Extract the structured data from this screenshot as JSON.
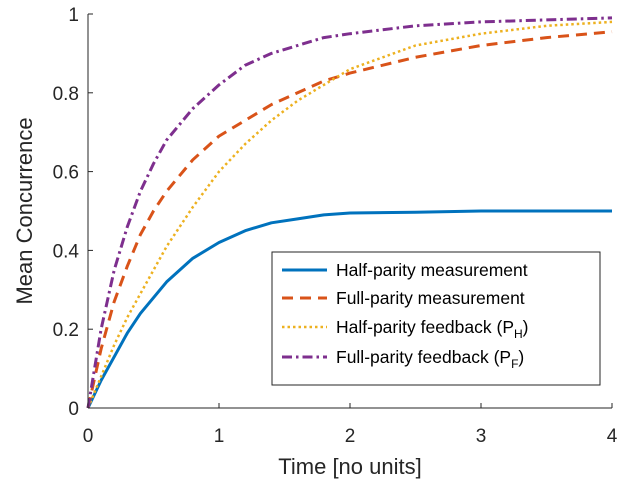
{
  "chart_data": {
    "type": "line",
    "xlabel": "Time [no units]",
    "ylabel": "Mean Concurrence",
    "xlim": [
      0,
      4
    ],
    "ylim": [
      0,
      1
    ],
    "xticks": [
      "0",
      "1",
      "2",
      "3",
      "4"
    ],
    "yticks": [
      "0",
      "0.2",
      "0.4",
      "0.6",
      "0.8",
      "1"
    ],
    "grid": false,
    "legend_position": "lower-right",
    "x": [
      0,
      0.1,
      0.2,
      0.3,
      0.4,
      0.5,
      0.6,
      0.8,
      1.0,
      1.2,
      1.4,
      1.6,
      1.8,
      2.0,
      2.5,
      3.0,
      3.5,
      4.0
    ],
    "series": [
      {
        "name": "Half-parity measurement",
        "color": "#0072BD",
        "dash": "solid",
        "values": [
          0,
          0.07,
          0.13,
          0.19,
          0.24,
          0.28,
          0.32,
          0.38,
          0.42,
          0.45,
          0.47,
          0.48,
          0.49,
          0.495,
          0.497,
          0.5,
          0.5,
          0.5
        ]
      },
      {
        "name": "Full-parity measurement",
        "color": "#D95319",
        "dash": "dashed",
        "values": [
          0,
          0.15,
          0.27,
          0.36,
          0.44,
          0.5,
          0.55,
          0.63,
          0.69,
          0.73,
          0.77,
          0.8,
          0.83,
          0.85,
          0.89,
          0.92,
          0.94,
          0.955
        ]
      },
      {
        "name_text": "Half-parity feedback (P",
        "name_sub": "H",
        "name_close": ")",
        "color": "#EDB120",
        "dash": "dotted",
        "values": [
          0,
          0.08,
          0.16,
          0.23,
          0.29,
          0.35,
          0.41,
          0.51,
          0.6,
          0.67,
          0.73,
          0.78,
          0.82,
          0.86,
          0.92,
          0.95,
          0.97,
          0.98
        ]
      },
      {
        "name_text": "Full-parity feedback (P",
        "name_sub": "F",
        "name_close": ")",
        "color": "#7E2F8E",
        "dash": "dashdot",
        "values": [
          0,
          0.2,
          0.35,
          0.46,
          0.55,
          0.62,
          0.68,
          0.76,
          0.82,
          0.87,
          0.9,
          0.92,
          0.94,
          0.95,
          0.97,
          0.98,
          0.985,
          0.99
        ]
      }
    ]
  }
}
